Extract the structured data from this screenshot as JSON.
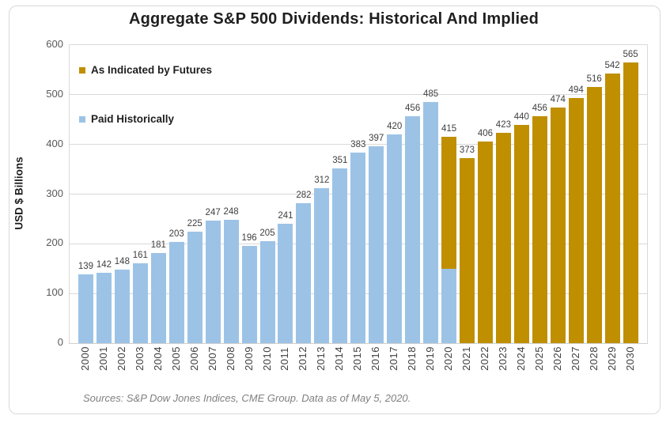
{
  "chart_data": {
    "type": "bar",
    "title": "Aggregate S&P 500 Dividends: Historical And Implied",
    "ylabel": "USD $ Billions",
    "xlabel": "",
    "ylim": [
      0,
      600
    ],
    "yticks": [
      0,
      100,
      200,
      300,
      400,
      500,
      600
    ],
    "grid": "horizontal",
    "legend": {
      "position": "top-left-inside",
      "entries": [
        {
          "label": "As Indicated by Futures",
          "color": "#BF8F00"
        },
        {
          "label": "Paid Historically",
          "color": "#9CC3E6"
        }
      ]
    },
    "categories": [
      "2000",
      "2001",
      "2002",
      "2003",
      "2004",
      "2005",
      "2006",
      "2007",
      "2008",
      "2009",
      "2010",
      "2011",
      "2012",
      "2013",
      "2014",
      "2015",
      "2016",
      "2017",
      "2018",
      "2019",
      "2020",
      "2021",
      "2022",
      "2023",
      "2024",
      "2025",
      "2026",
      "2027",
      "2028",
      "2029",
      "2030"
    ],
    "series": [
      {
        "name": "Paid Historically",
        "color": "#9CC3E6",
        "values": [
          139,
          142,
          148,
          161,
          181,
          203,
          225,
          247,
          248,
          196,
          205,
          241,
          282,
          312,
          351,
          383,
          397,
          420,
          456,
          485,
          150,
          0,
          0,
          0,
          0,
          0,
          0,
          0,
          0,
          0,
          0
        ]
      },
      {
        "name": "As Indicated by Futures",
        "color": "#BF8F00",
        "values": [
          0,
          0,
          0,
          0,
          0,
          0,
          0,
          0,
          0,
          0,
          0,
          0,
          0,
          0,
          0,
          0,
          0,
          0,
          0,
          0,
          265,
          373,
          406,
          423,
          440,
          456,
          474,
          494,
          516,
          542,
          565
        ]
      }
    ],
    "bar_totals": [
      139,
      142,
      148,
      161,
      181,
      203,
      225,
      247,
      248,
      196,
      205,
      241,
      282,
      312,
      351,
      383,
      397,
      420,
      456,
      485,
      415,
      373,
      406,
      423,
      440,
      456,
      474,
      494,
      516,
      542,
      565
    ],
    "bar_labels": [
      "139",
      "142",
      "148",
      "161",
      "181",
      "203",
      "225",
      "247",
      "248",
      "196",
      "205",
      "241",
      "282",
      "312",
      "351",
      "383",
      "397",
      "420",
      "456",
      "485",
      "415",
      "373",
      "406",
      "423",
      "440",
      "456",
      "474",
      "494",
      "516",
      "542",
      "565"
    ]
  },
  "footer": {
    "text": "Sources: S&P Dow Jones Indices, CME Group.  Data as of May 5, 2020."
  },
  "colors": {
    "futures": "#BF8F00",
    "historical": "#9CC3E6",
    "gridline": "#d9d9d9"
  }
}
